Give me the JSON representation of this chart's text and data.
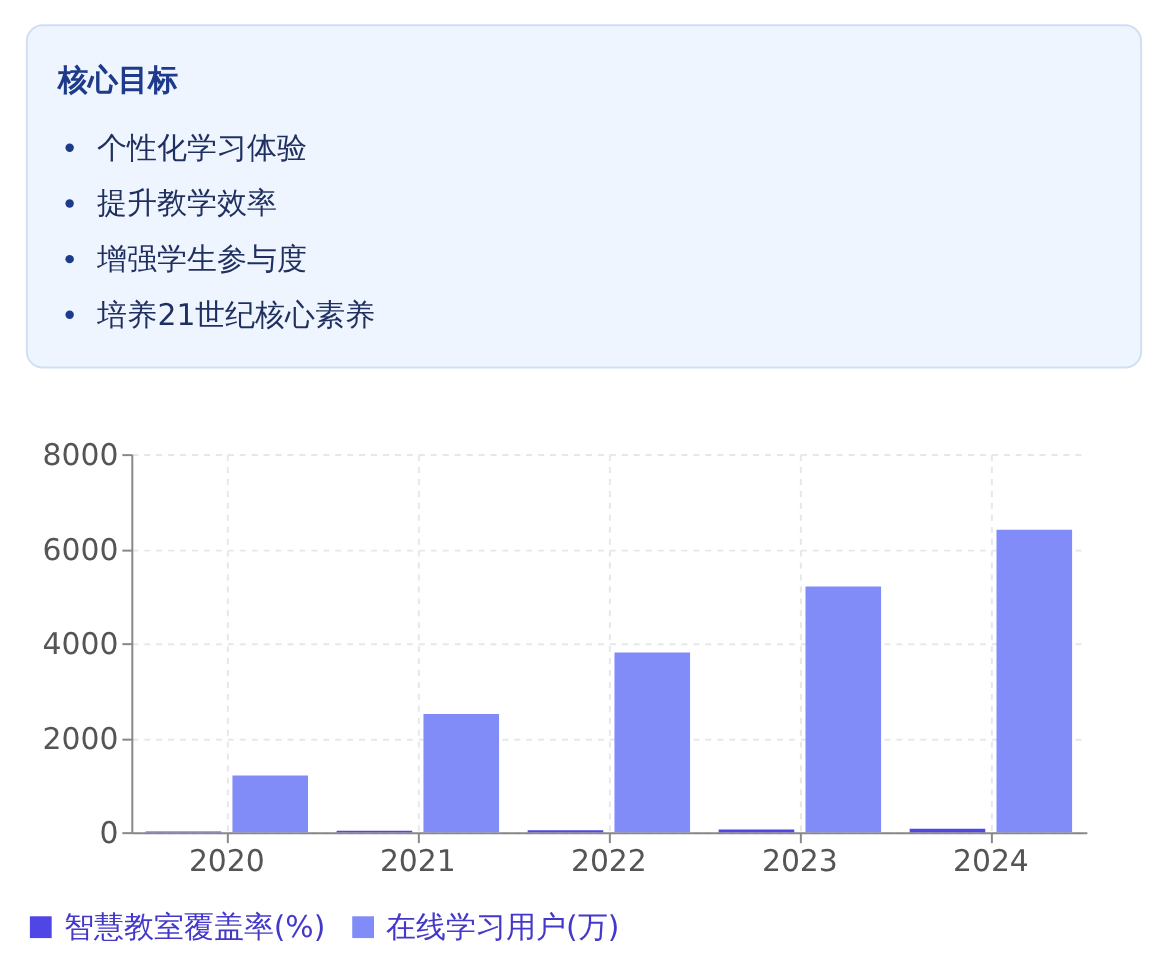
{
  "chart_data": [
    {
      "type": "other",
      "title": "核心目标",
      "annotations": [
        "个性化学习体验",
        "提升教学效率",
        "增强学生参与度",
        "培养21世纪核心素养"
      ]
    },
    {
      "type": "bar",
      "categories": [
        "2020",
        "2021",
        "2022",
        "2023",
        "2024"
      ],
      "series": [
        {
          "name": "智慧教室覆盖率(%)",
          "color": "#4f46e5",
          "values": [
            15,
            28,
            42,
            58,
            72
          ]
        },
        {
          "name": "在线学习用户(万)",
          "color": "#818cf8",
          "values": [
            1200,
            2500,
            3800,
            5200,
            6400
          ]
        }
      ],
      "ylim": [
        0,
        8000
      ],
      "yticks": [
        0,
        2000,
        4000,
        6000,
        8000
      ],
      "grid": true,
      "legend": "bottom"
    }
  ]
}
